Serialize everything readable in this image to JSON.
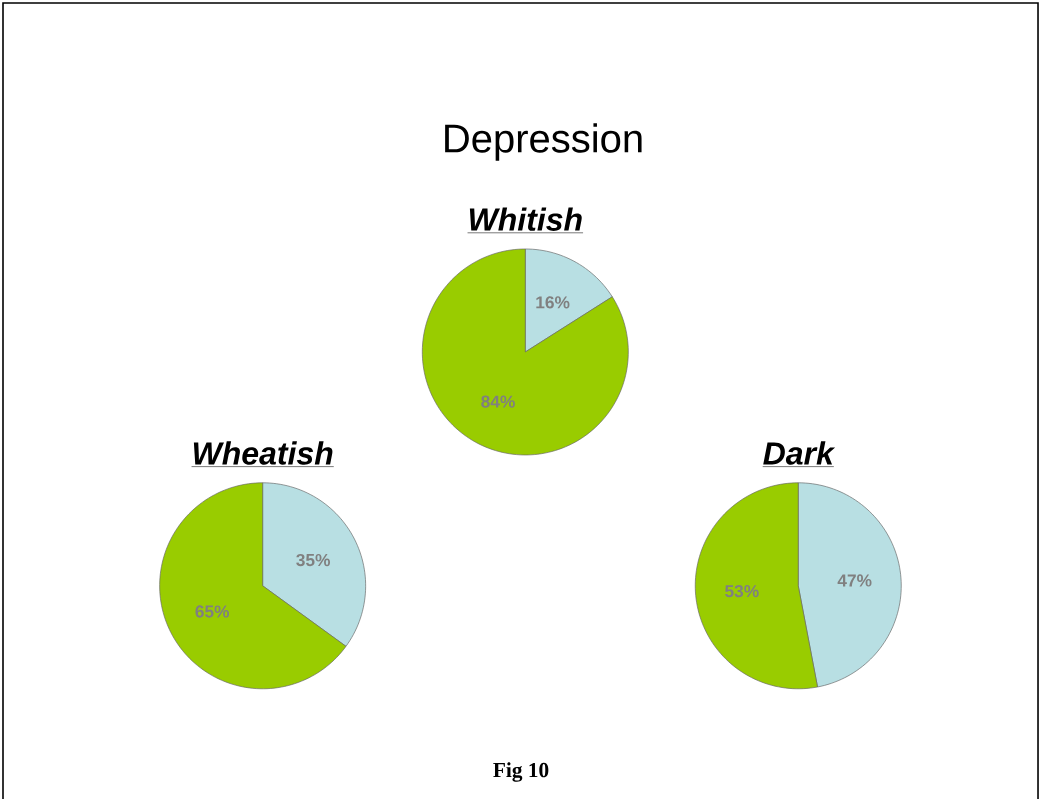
{
  "chart_data": [
    {
      "type": "other",
      "title": "Depression",
      "annotations": [
        "Fig 10"
      ]
    },
    {
      "type": "pie",
      "title": "Whitish",
      "categories": [
        null,
        null
      ],
      "values": [
        16,
        84
      ],
      "value_labels": [
        "16%",
        "84%"
      ],
      "colors": [
        "#b8dfe3",
        "#99cc00"
      ]
    },
    {
      "type": "pie",
      "title": "Wheatish",
      "categories": [
        null,
        null
      ],
      "values": [
        35,
        65
      ],
      "value_labels": [
        "35%",
        "65%"
      ],
      "colors": [
        "#b8dfe3",
        "#99cc00"
      ]
    },
    {
      "type": "pie",
      "title": "Dark",
      "categories": [
        null,
        null
      ],
      "values": [
        47,
        53
      ],
      "value_labels": [
        "47%",
        "53%"
      ],
      "colors": [
        "#b8dfe3",
        "#99cc00"
      ]
    }
  ]
}
